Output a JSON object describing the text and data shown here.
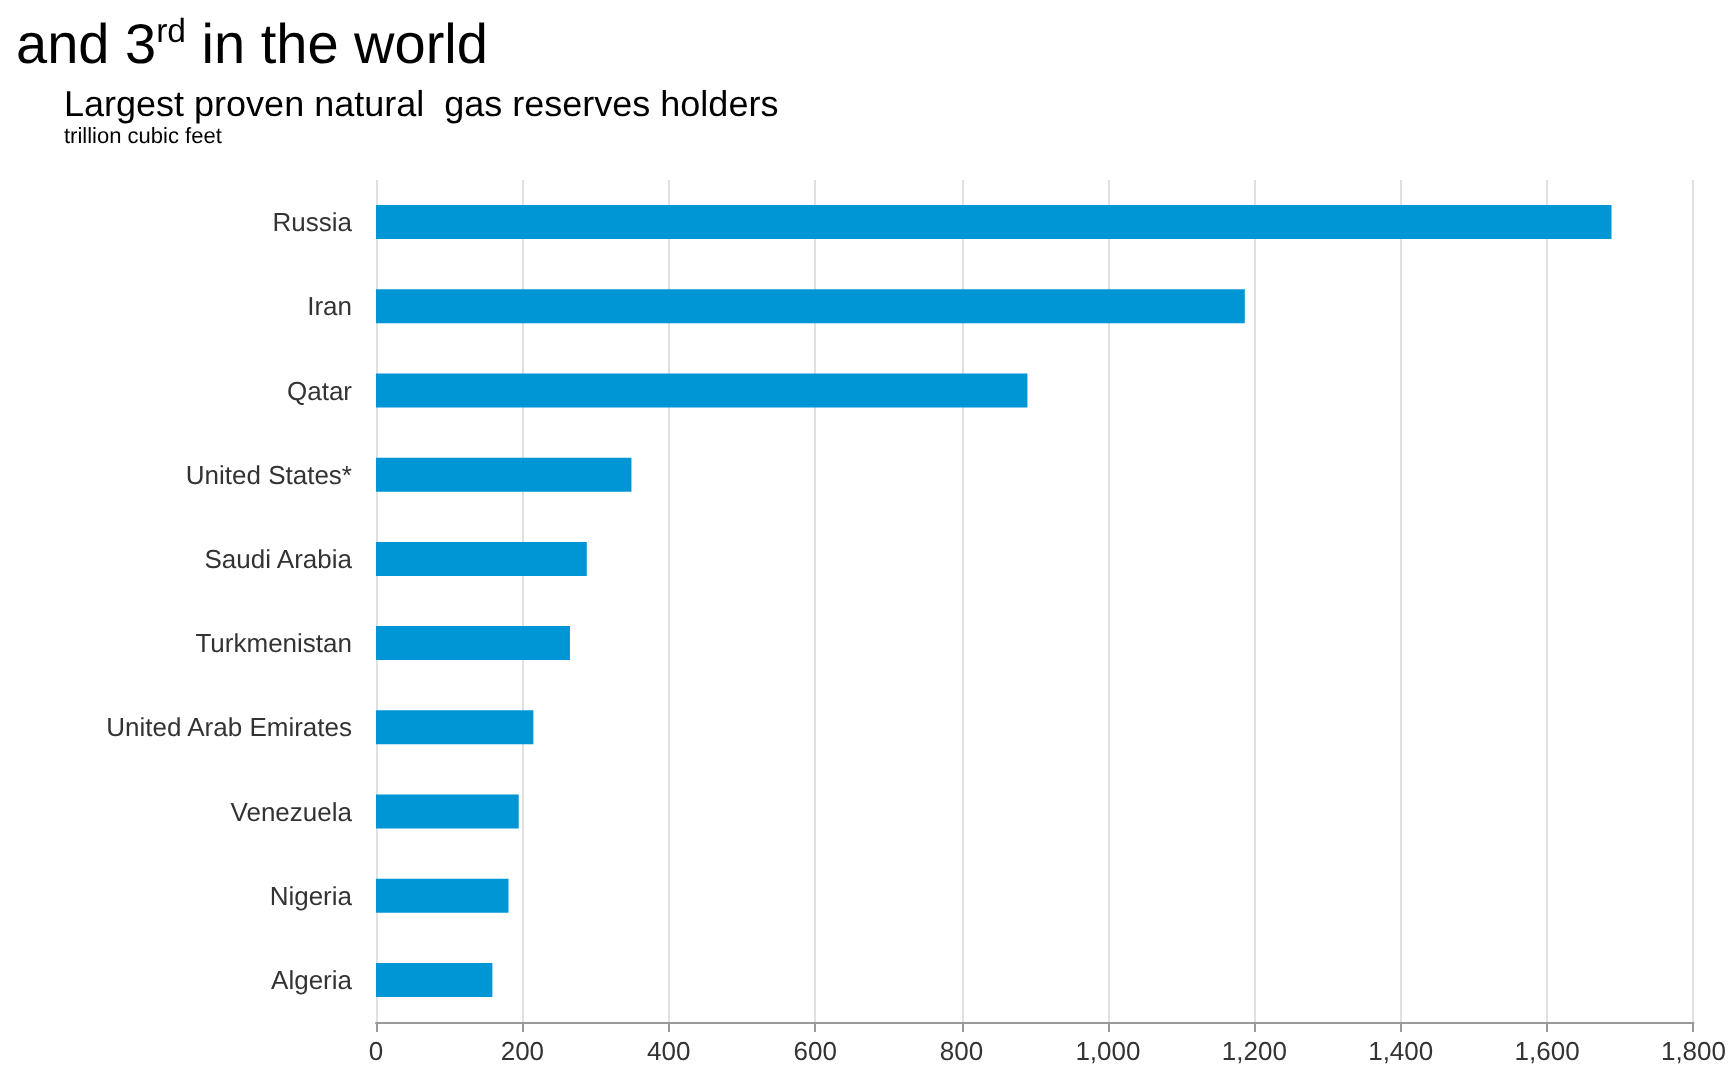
{
  "chart_data": {
    "type": "bar",
    "orientation": "horizontal",
    "title": "Largest proven natural  gas reserves holders",
    "subtitle": "trillion cubic feet",
    "annotations": [
      "and 3$^{rd}$ in the world"
    ],
    "categories": [
      "Russia",
      "Iran",
      "Qatar",
      "United States*",
      "Saudi Arabia",
      "Turkmenistan",
      "United Arab Emirates",
      "Venezuela",
      "Nigeria",
      "Algeria"
    ],
    "values": [
      1688,
      1187,
      890,
      349,
      288,
      265,
      215,
      195,
      181,
      159
    ],
    "color": "#0096d6",
    "xlim": [
      0,
      1800
    ],
    "xticks": [
      {
        "value": 0,
        "label": "0"
      },
      {
        "value": 200,
        "label": "200"
      },
      {
        "value": 400,
        "label": "400"
      },
      {
        "value": 600,
        "label": "600"
      },
      {
        "value": 800,
        "label": "800"
      },
      {
        "value": 1000,
        "label": "1,000"
      },
      {
        "value": 1200,
        "label": "1,200"
      },
      {
        "value": 1400,
        "label": "1,400"
      },
      {
        "value": 1600,
        "label": "1,600"
      },
      {
        "value": 1800,
        "label": "1,800"
      }
    ],
    "grid": "x"
  }
}
